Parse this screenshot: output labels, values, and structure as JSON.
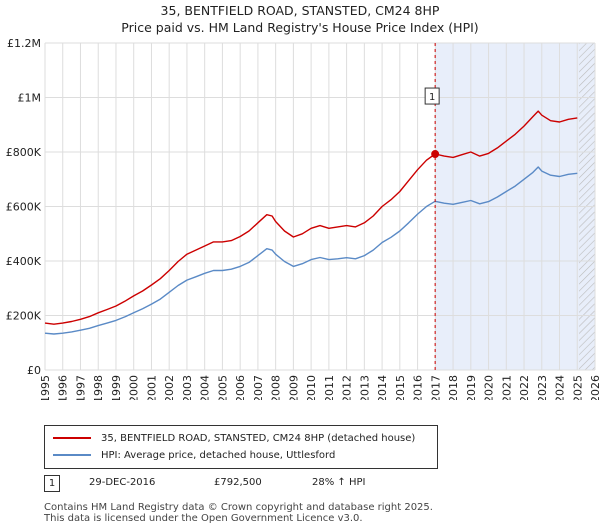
{
  "chart_data": {
    "type": "line",
    "title": "35, BENTFIELD ROAD, STANSTED, CM24 8HP",
    "subtitle": "Price paid vs. HM Land Registry's House Price Index (HPI)",
    "xlabel": "",
    "ylabel": "",
    "xlim": [
      1995,
      2026
    ],
    "ylim": [
      0,
      1200000
    ],
    "x_ticks": [
      "1995",
      "1996",
      "1997",
      "1998",
      "1999",
      "2000",
      "2001",
      "2002",
      "2003",
      "2004",
      "2005",
      "2006",
      "2007",
      "2008",
      "2009",
      "2010",
      "2011",
      "2012",
      "2013",
      "2014",
      "2015",
      "2016",
      "2017",
      "2018",
      "2019",
      "2020",
      "2021",
      "2022",
      "2023",
      "2024",
      "2025",
      "2026"
    ],
    "y_ticks": [
      {
        "value": 0,
        "label": "£0"
      },
      {
        "value": 200000,
        "label": "£200K"
      },
      {
        "value": 400000,
        "label": "£400K"
      },
      {
        "value": 600000,
        "label": "£600K"
      },
      {
        "value": 800000,
        "label": "£800K"
      },
      {
        "value": 1000000,
        "label": "£1M"
      },
      {
        "value": 1200000,
        "label": "£1.2M"
      }
    ],
    "grid": true,
    "series": [
      {
        "name": "35, BENTFIELD ROAD, STANSTED, CM24 8HP (detached house)",
        "color": "#cc0000",
        "x": [
          1995.0,
          1995.5,
          1996.0,
          1996.5,
          1997.0,
          1997.5,
          1998.0,
          1998.5,
          1999.0,
          1999.5,
          2000.0,
          2000.5,
          2001.0,
          2001.5,
          2002.0,
          2002.5,
          2003.0,
          2003.5,
          2004.0,
          2004.5,
          2005.0,
          2005.5,
          2006.0,
          2006.5,
          2007.0,
          2007.5,
          2007.8,
          2008.0,
          2008.5,
          2009.0,
          2009.5,
          2010.0,
          2010.5,
          2011.0,
          2011.5,
          2012.0,
          2012.5,
          2013.0,
          2013.5,
          2014.0,
          2014.5,
          2015.0,
          2015.5,
          2016.0,
          2016.5,
          2016.99,
          2017.5,
          2018.0,
          2018.5,
          2019.0,
          2019.5,
          2020.0,
          2020.5,
          2021.0,
          2021.5,
          2022.0,
          2022.5,
          2022.8,
          2023.0,
          2023.5,
          2024.0,
          2024.5,
          2025.0
        ],
        "values": [
          172000,
          168000,
          172000,
          178000,
          186000,
          196000,
          210000,
          222000,
          235000,
          252000,
          272000,
          290000,
          312000,
          335000,
          365000,
          398000,
          425000,
          440000,
          455000,
          470000,
          470000,
          475000,
          490000,
          510000,
          540000,
          570000,
          565000,
          545000,
          510000,
          488000,
          500000,
          520000,
          530000,
          520000,
          525000,
          530000,
          525000,
          540000,
          565000,
          600000,
          625000,
          655000,
          695000,
          735000,
          770000,
          792500,
          785000,
          780000,
          790000,
          800000,
          785000,
          795000,
          815000,
          840000,
          865000,
          895000,
          930000,
          950000,
          935000,
          915000,
          910000,
          920000,
          925000
        ]
      },
      {
        "name": "HPI: Average price, detached house, Uttlesford",
        "color": "#5a8ac6",
        "x": [
          1995.0,
          1995.5,
          1996.0,
          1996.5,
          1997.0,
          1997.5,
          1998.0,
          1998.5,
          1999.0,
          1999.5,
          2000.0,
          2000.5,
          2001.0,
          2001.5,
          2002.0,
          2002.5,
          2003.0,
          2003.5,
          2004.0,
          2004.5,
          2005.0,
          2005.5,
          2006.0,
          2006.5,
          2007.0,
          2007.5,
          2007.8,
          2008.0,
          2008.5,
          2009.0,
          2009.5,
          2010.0,
          2010.5,
          2011.0,
          2011.5,
          2012.0,
          2012.5,
          2013.0,
          2013.5,
          2014.0,
          2014.5,
          2015.0,
          2015.5,
          2016.0,
          2016.5,
          2016.99,
          2017.5,
          2018.0,
          2018.5,
          2019.0,
          2019.5,
          2020.0,
          2020.5,
          2021.0,
          2021.5,
          2022.0,
          2022.5,
          2022.8,
          2023.0,
          2023.5,
          2024.0,
          2024.5,
          2025.0
        ],
        "values": [
          135000,
          132000,
          135000,
          140000,
          146000,
          153000,
          163000,
          172000,
          182000,
          195000,
          210000,
          225000,
          242000,
          260000,
          285000,
          310000,
          330000,
          342000,
          355000,
          365000,
          365000,
          370000,
          380000,
          395000,
          420000,
          445000,
          440000,
          425000,
          398000,
          380000,
          390000,
          405000,
          413000,
          405000,
          408000,
          412000,
          408000,
          420000,
          440000,
          468000,
          487000,
          510000,
          540000,
          572000,
          600000,
          619000,
          612000,
          608000,
          615000,
          622000,
          610000,
          618000,
          635000,
          655000,
          675000,
          700000,
          725000,
          745000,
          730000,
          715000,
          710000,
          718000,
          722000
        ]
      }
    ],
    "annotations": [
      {
        "label": "1",
        "x": 2016.99,
        "y": 792500,
        "date": "29-DEC-2016",
        "price": "£792,500",
        "hpi_change": "28% ↑ HPI"
      }
    ],
    "shaded_region": {
      "from": 2016.99,
      "to": 2026
    },
    "hatched_region": {
      "from": 2025.1,
      "to": 2026
    }
  },
  "legend": {
    "property_label": "35, BENTFIELD ROAD, STANSTED, CM24 8HP (detached house)",
    "hpi_label": "HPI: Average price, detached house, Uttlesford",
    "property_color": "#cc0000",
    "hpi_color": "#5a8ac6"
  },
  "annotation_row": {
    "badge": "1",
    "date": "29-DEC-2016",
    "price": "£792,500",
    "hpi_change": "28% ↑ HPI"
  },
  "footer": {
    "line1": "Contains HM Land Registry data © Crown copyright and database right 2025.",
    "line2": "This data is licensed under the Open Government Licence v3.0."
  }
}
